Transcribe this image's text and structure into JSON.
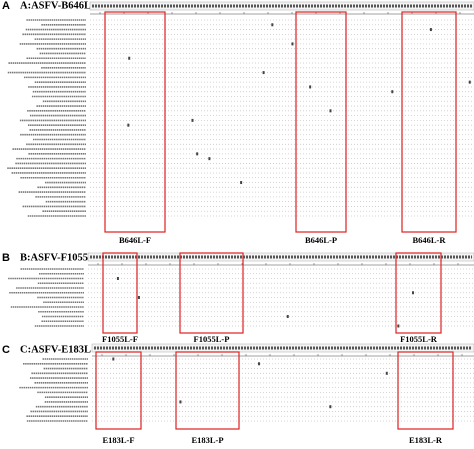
{
  "panels": [
    {
      "label": "A",
      "title": "A:ASFV-B646L",
      "primers": [
        "B646L-F",
        "B646L-P",
        "B646L-R"
      ]
    },
    {
      "label": "B",
      "title": "B:ASFV-F1055L",
      "primers": [
        "F1055L-F",
        "F1055L-P",
        "F1055L-R"
      ]
    },
    {
      "label": "C",
      "title": "C:ASFV-E183L",
      "primers": [
        "E183L-F",
        "E183L-P",
        "E183L-R"
      ]
    }
  ]
}
